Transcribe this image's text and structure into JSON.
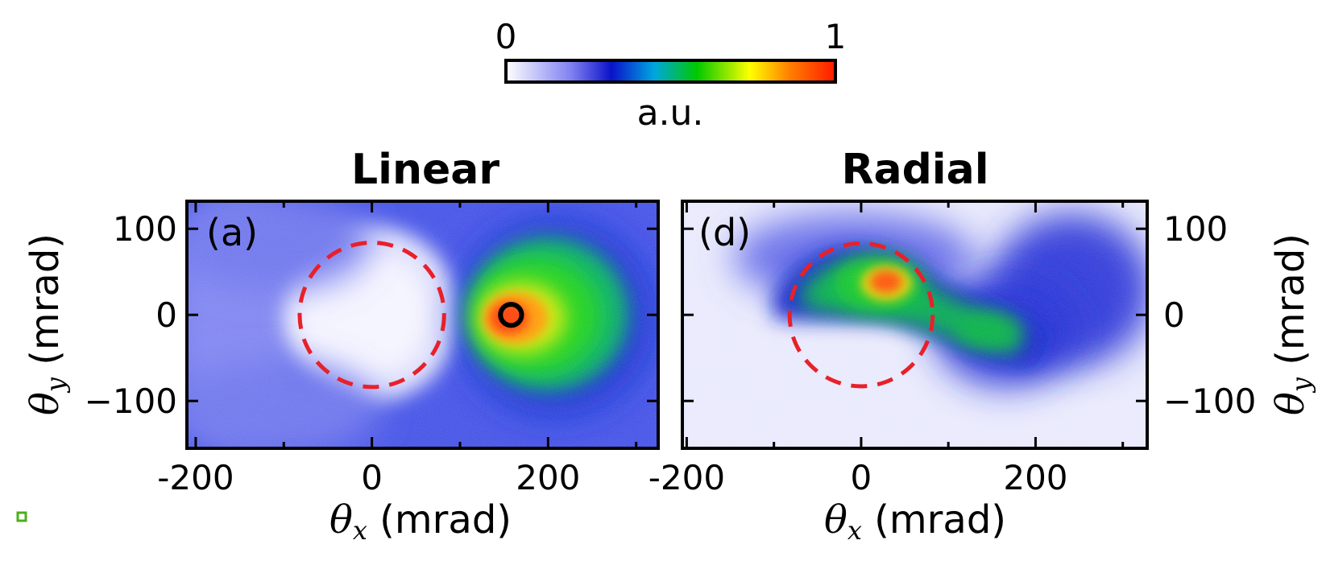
{
  "colorbar": {
    "min_label": "0",
    "max_label": "1",
    "label": "a.u.",
    "colors": [
      "#ffffff",
      "#7f7ff2",
      "#0a12c8",
      "#00c8ff",
      "#00c800",
      "#ffff00",
      "#ff8000",
      "#ff2000"
    ]
  },
  "panels": {
    "linear": {
      "title": "Linear",
      "tag": "(a)"
    },
    "radial": {
      "title": "Radial",
      "tag": "(d)"
    }
  },
  "axes": {
    "x_label_symbol": "θ",
    "x_label_sub": "x",
    "x_label_unit": " (mrad)",
    "y_label_symbol": "θ",
    "y_label_sub": "y",
    "y_label_unit": " (mrad)",
    "x_ticks": [
      "-200",
      "0",
      "200"
    ],
    "y_ticks": [
      "100",
      "0",
      "−100"
    ]
  },
  "chart_data": [
    {
      "type": "heatmap",
      "title": "Linear",
      "panel_tag": "(a)",
      "xlabel": "θx (mrad)",
      "ylabel": "θy (mrad)",
      "xlim": [
        -210,
        325
      ],
      "ylim": [
        -155,
        132
      ],
      "x_ticks": [
        -200,
        0,
        200
      ],
      "y_ticks": [
        100,
        0,
        -100
      ],
      "dashed_circle": {
        "cx": 0,
        "cy": 0,
        "r": 82,
        "color": "#e8202a"
      },
      "marker_circle": {
        "cx": 158,
        "cy": 0,
        "r": 12,
        "color": "#000000"
      },
      "intensity_peak": {
        "x": 165,
        "y": 0,
        "value": 1.0
      }
    },
    {
      "type": "heatmap",
      "title": "Radial",
      "panel_tag": "(d)",
      "xlabel": "θx (mrad)",
      "ylabel": "θy (mrad)",
      "xlim": [
        -205,
        328
      ],
      "ylim": [
        -155,
        132
      ],
      "x_ticks": [
        -200,
        0,
        200
      ],
      "y_ticks": [
        100,
        0,
        -100
      ],
      "dashed_circle": {
        "cx": 0,
        "cy": 0,
        "r": 82,
        "color": "#e8202a"
      },
      "intensity_peak": {
        "x": 30,
        "y": 38,
        "value": 1.0
      }
    }
  ]
}
